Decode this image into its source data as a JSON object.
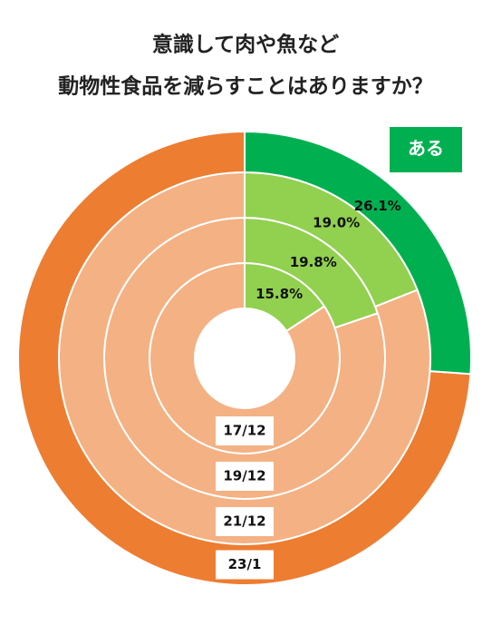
{
  "chart_data": {
    "type": "nested-donut",
    "title": [
      "意識して肉や魚など",
      "動物性食品を減らすことはありますか？"
    ],
    "categories": [
      "17/12",
      "19/12",
      "21/12",
      "23/1"
    ],
    "series": [
      {
        "name": "ある",
        "values": [
          15.8,
          19.8,
          19.0,
          26.1
        ],
        "value_labels": [
          "15.8%",
          "19.8%",
          "19.0%",
          "26.1%"
        ],
        "colors": [
          "#92d050",
          "#92d050",
          "#92d050",
          "#00b050"
        ]
      }
    ],
    "rest_colors": [
      "#f4b183",
      "#f4b183",
      "#f4b183",
      "#ed7d31"
    ],
    "legend_color": "#00b050"
  }
}
